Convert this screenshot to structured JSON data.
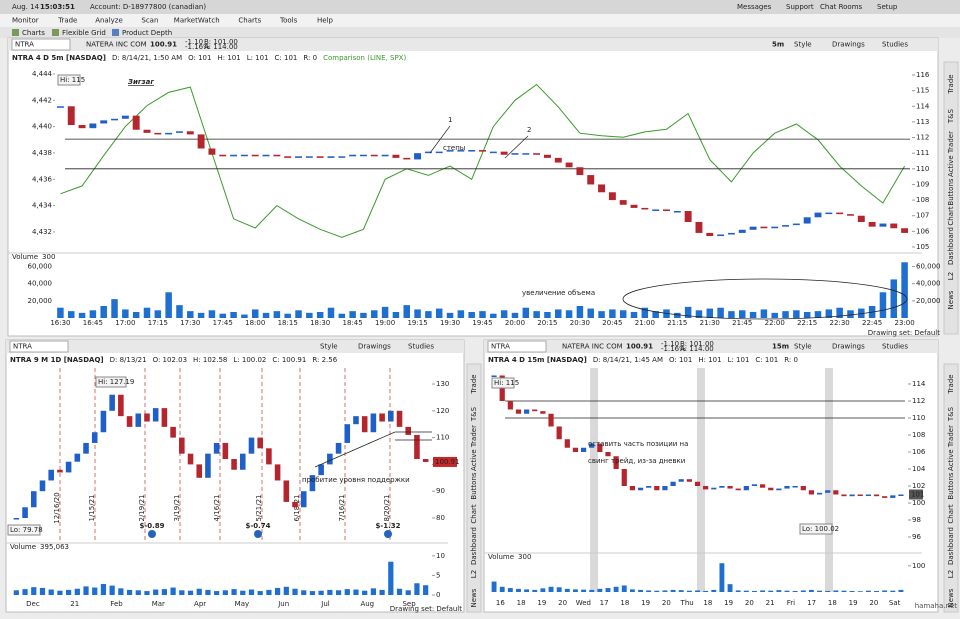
{
  "ui": {
    "topbar": {
      "date": "Aug. 14",
      "time": "15:03:51",
      "account": "Account: D-18977800 (canadian)",
      "right": [
        "Messages",
        "Support",
        "Chat Rooms",
        "Setup"
      ]
    },
    "menu": [
      "Monitor",
      "Trade",
      "Analyze",
      "Scan",
      "MarketWatch",
      "Charts",
      "Tools",
      "Help"
    ],
    "subtabs": [
      "Charts",
      "Flexible Grid",
      "Product Depth"
    ],
    "side_tabs": [
      "Trade",
      "T&S",
      "Active Trader",
      "Buttons",
      "Chart",
      "Dashboard",
      "L2",
      "News"
    ],
    "buttons": [
      "Style",
      "Drawings",
      "Studies"
    ],
    "watermark": "hamaha.net"
  },
  "chart_data": [
    {
      "type": "candlestick",
      "symbol": "NTRA",
      "company": "NATERA INC COM",
      "last": "100.91",
      "change": "-1.10",
      "change_pct": "-1.16%",
      "bid": "B: 101.00",
      "ask": "A: 114.00",
      "period": "5m",
      "title": "NTRA 4 D 5m [NASDAQ]",
      "info": [
        "D: 8/14/21, 1:50 AM",
        "O: 101",
        "H: 101",
        "L: 101",
        "C: 101",
        "R: 0"
      ],
      "up_color": "#1f5fc9",
      "down_color": "#b5252e",
      "values": [
        114.0,
        112.8,
        112.6,
        112.9,
        113.1,
        113.2,
        113.4,
        112.5,
        112.3,
        112.2,
        112.3,
        112.4,
        112.2,
        111.3,
        110.9,
        110.8,
        110.9,
        110.9,
        110.8,
        110.9,
        110.8,
        110.7,
        110.8,
        110.8,
        110.7,
        110.8,
        110.8,
        110.9,
        110.9,
        110.8,
        110.9,
        110.7,
        110.6,
        111.0,
        111.1,
        111.1,
        111.2,
        111.2,
        111.2,
        111.1,
        111.1,
        110.9,
        111.0,
        111.0,
        110.9,
        110.7,
        110.4,
        110.1,
        109.6,
        109.0,
        108.5,
        108.0,
        107.7,
        107.5,
        107.4,
        107.4,
        107.3,
        107.3,
        106.6,
        105.9,
        105.7,
        105.8,
        105.9,
        106.1,
        106.3,
        106.2,
        106.3,
        106.4,
        106.5,
        106.9,
        107.2,
        107.2,
        107.1,
        107.0,
        106.6,
        106.3,
        106.5,
        106.2,
        105.9
      ],
      "ylim": [
        104.68,
        116.64
      ],
      "yticks": [
        105,
        106,
        107,
        108,
        109,
        110,
        111,
        112,
        113,
        114,
        115,
        116
      ],
      "comparison": {
        "label": "Comparison (LINE, SPX)",
        "color": "#3a9a2a",
        "values": [
          4434.9,
          4435.5,
          4437.8,
          4440.0,
          4441.6,
          4442.6,
          4443.0,
          4438.0,
          4433.0,
          4432.3,
          4434.0,
          4433.0,
          4432.2,
          4431.6,
          4432.2,
          4436.0,
          4436.8,
          4436.3,
          4437.0,
          4436.0,
          4440.0,
          4442.0,
          4443.2,
          4441.5,
          4439.5,
          4439.3,
          4439.2,
          4439.6,
          4439.8,
          4441.0,
          4437.5,
          4435.8,
          4438.0,
          4439.5,
          4440.2,
          4439.0,
          4437.0,
          4435.5,
          4434.2,
          4437.0
        ]
      },
      "y2lim": [
        4430.48,
        4444.68
      ],
      "y2ticks": [
        {
          "value": 4432,
          "label": "4,432"
        },
        {
          "value": 4434,
          "label": "4,434"
        },
        {
          "value": 4436,
          "label": "4,436"
        },
        {
          "value": 4438,
          "label": "4,438"
        },
        {
          "value": 4440,
          "label": "4,440"
        },
        {
          "value": 4442,
          "label": "4,442"
        },
        {
          "value": 4444,
          "label": "4,444"
        }
      ],
      "levels": [
        111.9,
        110.0
      ],
      "time_labels": [
        "16:30",
        "16:45",
        "17:00",
        "17:15",
        "17:30",
        "17:45",
        "18:00",
        "18:15",
        "18:30",
        "18:45",
        "19:00",
        "19:15",
        "19:30",
        "19:45",
        "20:00",
        "20:15",
        "20:30",
        "20:45",
        "21:00",
        "21:15",
        "21:30",
        "21:45",
        "22:00",
        "22:15",
        "22:30",
        "22:45",
        "23:00"
      ],
      "volume": {
        "title": "Volume",
        "last": "300",
        "color": "#1f6fd0",
        "values": [
          12000,
          8000,
          6000,
          9000,
          14000,
          22000,
          10000,
          7000,
          12000,
          9000,
          30000,
          15000,
          8000,
          6000,
          9000,
          5000,
          7000,
          4000,
          10000,
          6000,
          8000,
          5000,
          9000,
          6000,
          7000,
          12000,
          5000,
          8000,
          6000,
          9000,
          13000,
          7000,
          15000,
          10000,
          8000,
          11000,
          6000,
          9000,
          7000,
          8000,
          5000,
          9000,
          6000,
          12000,
          8000,
          7000,
          10000,
          9000,
          14000,
          11000,
          8000,
          10000,
          9000,
          7000,
          12000,
          8000,
          10000,
          6000,
          13000,
          9000,
          11000,
          12000,
          8000,
          9000,
          7000,
          10000,
          6000,
          8000,
          9000,
          7000,
          8000,
          10000,
          12000,
          9000,
          11000,
          14000,
          30000,
          45000,
          65000
        ],
        "ylim": [
          0,
          70000
        ],
        "yticks": [
          {
            "value": 20000,
            "label": "20,000"
          },
          {
            "value": 40000,
            "label": "40,000"
          },
          {
            "value": 60000,
            "label": "60,000"
          }
        ]
      },
      "hi": "Hi: 115",
      "annotations": [
        "Зигзаг",
        "1",
        "2",
        "степы",
        "увеличение объема"
      ],
      "drawing_set": "Drawing set: Default"
    },
    {
      "type": "candlestick",
      "symbol": "NTRA",
      "period": "",
      "title": "NTRA 9 M 1D [NASDAQ]",
      "info": [
        "D: 8/13/21",
        "O: 102.03",
        "H: 102.58",
        "L: 100.02",
        "C: 100.91",
        "R: 2.56"
      ],
      "up_color": "#1f5fc9",
      "down_color": "#b5252e",
      "values": [
        80,
        84,
        90,
        94,
        98,
        97,
        101,
        104,
        108,
        112,
        120,
        126,
        118,
        114,
        119,
        116,
        121,
        114,
        110,
        104,
        100,
        95,
        104,
        108,
        102,
        98,
        104,
        110,
        106,
        100,
        94,
        86,
        84,
        90,
        96,
        100,
        104,
        108,
        115,
        118,
        112,
        119,
        116,
        120,
        114,
        111,
        102,
        100.91
      ],
      "ylim": [
        79.25,
        135.97
      ],
      "yticks": [
        80,
        90,
        100,
        110,
        120,
        130
      ],
      "price_tag": "100.91",
      "time_labels": [
        "Dec",
        "21",
        "Feb",
        "Mar",
        "Apr",
        "May",
        "Jun",
        "Jul",
        "Aug",
        "Sep"
      ],
      "event_dates": [
        "12/16/20",
        "1/15/21",
        "2/19/21",
        "3/19/21",
        "4/16/21",
        "5/21/21",
        "6/18/21",
        "7/16/21",
        "8/20/21"
      ],
      "earnings": [
        "$-0.89",
        "$-0.74",
        "$-1.32"
      ],
      "volume": {
        "title": "Volume",
        "last": "395,063",
        "color": "#1f6fd0",
        "values": [
          1.2,
          1.5,
          2.0,
          1.8,
          1.4,
          1.1,
          1.3,
          1.6,
          2.2,
          1.9,
          2.8,
          2.4,
          1.7,
          1.3,
          1.2,
          1.0,
          1.4,
          1.5,
          1.9,
          1.2,
          1.1,
          1.6,
          1.3,
          1.0,
          1.2,
          1.5,
          1.1,
          1.4,
          1.0,
          1.3,
          1.8,
          2.1,
          1.6,
          1.2,
          1.0,
          1.1,
          1.3,
          1.2,
          1.5,
          1.4,
          1.1,
          1.7,
          1.3,
          8.5,
          1.6,
          1.2,
          3.0,
          2.5
        ],
        "ylim": [
          0,
          12
        ],
        "yticks": [
          0,
          5,
          10
        ]
      },
      "hi": "Hi: 127.19",
      "lo": "Lo: 79.78",
      "annotations": [
        "пробитие уровня поддержки"
      ],
      "drawing_set": "Drawing set: Default"
    },
    {
      "type": "candlestick",
      "symbol": "NTRA",
      "company": "NATERA INC COM",
      "last": "100.91",
      "change": "-1.10",
      "change_pct": "-1.16%",
      "bid": "B: 101.00",
      "ask": "A: 114.00",
      "period": "15m",
      "title": "NTRA 4 D 15m [NASDAQ]",
      "info": [
        "D: 8/14/21, 1:45 AM",
        "O: 101",
        "H: 101",
        "L: 101",
        "C: 101",
        "R: 0"
      ],
      "up_color": "#1f5fc9",
      "down_color": "#b5252e",
      "values": [
        115,
        112,
        111,
        110.5,
        111,
        110.8,
        110.5,
        109,
        107.5,
        106.5,
        106,
        106.5,
        107,
        106,
        105.5,
        104,
        102,
        101.5,
        101.8,
        102,
        101.5,
        102,
        102.5,
        102.8,
        102.5,
        102,
        101.6,
        101.8,
        102,
        101.7,
        101.5,
        102,
        102.2,
        101.8,
        101.5,
        101.7,
        102,
        102,
        101.5,
        101,
        101.2,
        101.5,
        101,
        100.8,
        101,
        100.9,
        101,
        100.8,
        100.6,
        100.9,
        101
      ],
      "ylim": [
        95.06,
        115.88
      ],
      "yticks": [
        96,
        98,
        100,
        102,
        104,
        106,
        108,
        110,
        112,
        114
      ],
      "price_tag": "101",
      "levels": [
        112,
        110
      ],
      "time_labels": [
        "16",
        "18",
        "19",
        "20",
        "Wed",
        "17",
        "18",
        "19",
        "20",
        "Thu",
        "18",
        "19",
        "20",
        "21",
        "Fri",
        "17",
        "18",
        "19",
        "20",
        "Sat"
      ],
      "volume": {
        "title": "Volume",
        "last": "300",
        "color": "#1f6fd0",
        "values": [
          40,
          20,
          15,
          12,
          10,
          8,
          14,
          20,
          18,
          12,
          10,
          9,
          8,
          12,
          15,
          20,
          25,
          10,
          8,
          6,
          5,
          6,
          8,
          7,
          5,
          6,
          4,
          8,
          110,
          30,
          6,
          5,
          4,
          6,
          5,
          7,
          5,
          4,
          6,
          8,
          5,
          4,
          6,
          5,
          4,
          3,
          5,
          4,
          6,
          5,
          8
        ],
        "ylim": [
          0,
          130
        ],
        "yticks": [
          100
        ]
      },
      "hi": "Hi: 115",
      "lo": "Lo: 100.02",
      "note": [
        "оставить часть позиции на",
        "свинг трейд, из-за дневки"
      ]
    }
  ]
}
